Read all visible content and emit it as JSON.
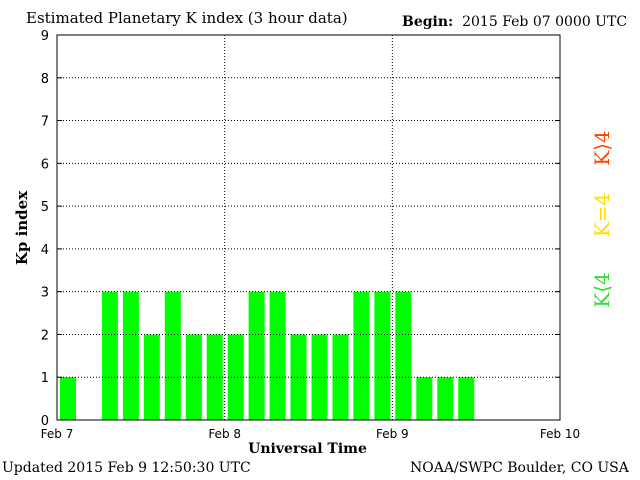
{
  "header": {
    "title": "Estimated Planetary K index (3 hour data)",
    "begin_label": "Begin:",
    "begin_value": "2015 Feb 07 0000 UTC"
  },
  "footer": {
    "updated": "Updated 2015 Feb  9 12:50:30 UTC",
    "credit": "NOAA/SWPC Boulder, CO USA"
  },
  "legend": [
    {
      "label": "K⟨4",
      "color": "#33dd33"
    },
    {
      "label": "K=4",
      "color": "#ffdd00"
    },
    {
      "label": "K⟩4",
      "color": "#ff4400"
    }
  ],
  "chart_data": {
    "type": "bar",
    "title": "Estimated Planetary K index (3 hour data)",
    "xlabel": "Universal Time",
    "ylabel": "Kp index",
    "ylim": [
      0,
      9
    ],
    "yticks": [
      0,
      1,
      2,
      3,
      4,
      5,
      6,
      7,
      8,
      9
    ],
    "x_ticks": [
      "Feb 7",
      "Feb 8",
      "Feb 9",
      "Feb 10"
    ],
    "x_unit": "3-hour interval starting 2015 Feb 07 0000 UTC",
    "slots_total": 24,
    "bar_color": "#00ff00",
    "values": [
      1,
      null,
      3,
      3,
      2,
      3,
      2,
      2,
      2,
      3,
      3,
      2,
      2,
      2,
      3,
      3,
      3,
      1,
      1,
      1
    ],
    "grid": true
  }
}
